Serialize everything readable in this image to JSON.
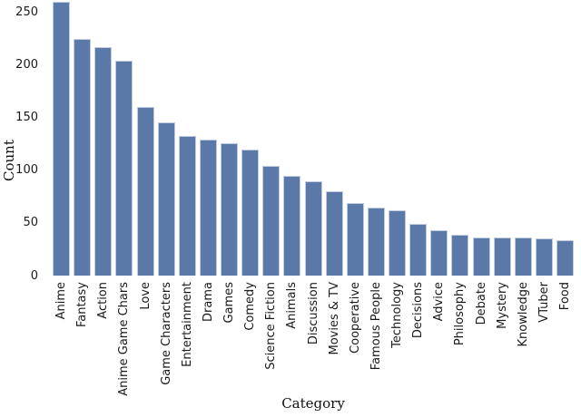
{
  "chart_data": {
    "type": "bar",
    "title": "",
    "xlabel": "Category",
    "ylabel": "Count",
    "categories": [
      "Anime",
      "Fantasy",
      "Action",
      "Anime Game Chars",
      "Love",
      "Game Characters",
      "Entertainment",
      "Drama",
      "Games",
      "Comedy",
      "Science Fiction",
      "Animals",
      "Discussion",
      "Movies & TV",
      "Cooperative",
      "Famous People",
      "Technology",
      "Decisions",
      "Advice",
      "Philosophy",
      "Debate",
      "Mystery",
      "Knowledge",
      "VTuber",
      "Food"
    ],
    "values": [
      260,
      225,
      217,
      204,
      160,
      146,
      133,
      129,
      126,
      120,
      104,
      95,
      90,
      80,
      69,
      65,
      62,
      49,
      43,
      39,
      36,
      36,
      36,
      35,
      34
    ],
    "yticks": [
      0,
      50,
      100,
      150,
      200,
      250
    ],
    "ylim": [
      0,
      262
    ],
    "grid": false,
    "legend": false,
    "bar_color": "#5a78a8",
    "bar_edge_color": "#c0cbdf"
  }
}
